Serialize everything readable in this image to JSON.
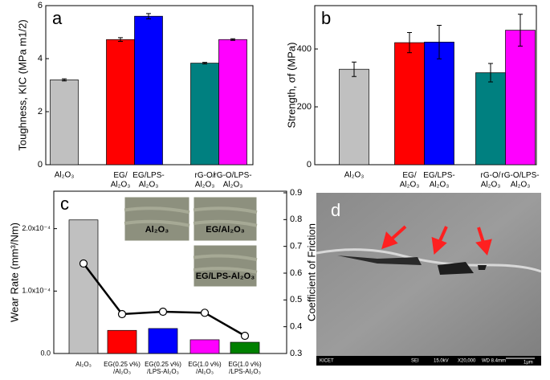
{
  "chart_data": [
    {
      "type": "bar",
      "label": "a",
      "y_label": "Toughness, KIC (MPa m1/2)",
      "categories": [
        "Al₂O₃",
        "EG/\nAl₂O₃",
        "EG/LPS-\nAl₂O₃",
        "rG-O/\nAl₂O₃",
        "rG-O/LPS-\nAl₂O₃"
      ],
      "values": [
        3.2,
        4.72,
        5.6,
        3.83,
        4.72
      ],
      "errors": [
        0.04,
        0.07,
        0.1,
        0.03,
        0.03
      ],
      "colors": [
        "#c0c0c0",
        "#ff0000",
        "#0000ff",
        "#008080",
        "#ff00ff"
      ],
      "ylim": [
        0,
        6
      ],
      "yticks": [
        0,
        2,
        4,
        6
      ]
    },
    {
      "type": "bar",
      "label": "b",
      "y_label": "Strength, σf (MPa)",
      "categories": [
        "Al₂O₃",
        "EG/\nAl₂O₃",
        "EG/LPS-\nAl₂O₃",
        "rG-O/\nAl₂O₃",
        "rG-O/LPS-\nAl₂O₃"
      ],
      "values": [
        330,
        422,
        424,
        318,
        465
      ],
      "errors": [
        25,
        35,
        58,
        32,
        55
      ],
      "colors": [
        "#c0c0c0",
        "#ff0000",
        "#0000ff",
        "#008080",
        "#ff00ff"
      ],
      "ylim": [
        0,
        550
      ],
      "yticks": [
        0,
        200,
        400
      ]
    },
    {
      "type": "bar_line",
      "label": "c",
      "y_label": "Wear Rate (mm³/Nm)",
      "y2_label": "Coefficient of Friction",
      "categories": [
        "Al₂O₃",
        "EG(0.25 v%)\n/Al₂O₃",
        "EG(0.25 v%)\n/LPS-Al₂O₃",
        "EG(1.0 v%)\n/Al₂O₃",
        "EG(1.0 v%)\n/LPS-Al₂O₃"
      ],
      "series": [
        {
          "values": [
            0.000214,
            3.7e-05,
            4e-05,
            2.2e-05,
            1.8e-05
          ],
          "colors": [
            "#c0c0c0",
            "#ff0000",
            "#0000ff",
            "#ff00ff",
            "#008000"
          ]
        },
        {
          "values": [
            0.636,
            0.447,
            0.456,
            0.452,
            0.366
          ],
          "axis": "y2",
          "color": "#000000"
        }
      ],
      "ylim": [
        0,
        0.00026
      ],
      "yticks": [
        {
          "value": 0,
          "label": "0.0"
        },
        {
          "value": 0.0001,
          "label": "1.0x10⁻⁴"
        },
        {
          "value": 0.0002,
          "label": "2.0x10⁻⁴"
        }
      ],
      "y2lim": [
        0.3,
        0.906
      ],
      "y2ticks": [
        0.3,
        0.4,
        0.5,
        0.6,
        0.7,
        0.8,
        0.9
      ],
      "insets": [
        "Al₂O₃",
        "EG/Al₂O₃",
        "EG/LPS-Al₂O₃"
      ]
    }
  ],
  "image": {
    "label": "d",
    "info": [
      "KICET",
      "SEI",
      "15.0kV",
      "X20,000",
      "WD 8.4mm",
      "1μm"
    ]
  }
}
